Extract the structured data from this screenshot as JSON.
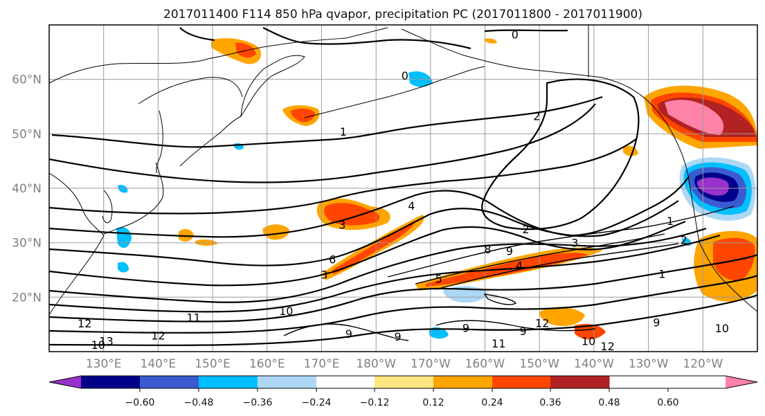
{
  "title": "2017011400 F114 850 hPa qvapor, precipitation PC (2017011800 - 2017011900)",
  "map": {
    "lat_range": [
      10,
      70
    ],
    "lon_range_east": [
      120,
      250
    ],
    "lat_ticks": [
      {
        "value": 60,
        "label": "60°N"
      },
      {
        "value": 50,
        "label": "50°N"
      },
      {
        "value": 40,
        "label": "40°N"
      },
      {
        "value": 30,
        "label": "30°N"
      },
      {
        "value": 20,
        "label": "20°N"
      }
    ],
    "lon_ticks": [
      {
        "value": 130,
        "label": "130°E"
      },
      {
        "value": 140,
        "label": "140°E"
      },
      {
        "value": 150,
        "label": "150°E"
      },
      {
        "value": 160,
        "label": "160°E"
      },
      {
        "value": 170,
        "label": "170°E"
      },
      {
        "value": 180,
        "label": "180°W"
      },
      {
        "value": 190,
        "label": "170°W"
      },
      {
        "value": 200,
        "label": "160°W"
      },
      {
        "value": 210,
        "label": "150°W"
      },
      {
        "value": 220,
        "label": "140°W"
      },
      {
        "value": 230,
        "label": "130°W"
      },
      {
        "value": 240,
        "label": "120°W"
      }
    ],
    "contour_labels": [
      {
        "text": "0",
        "lon": 205.5,
        "lat": 68.3
      },
      {
        "text": "0",
        "lon": 185.3,
        "lat": 60.7
      },
      {
        "text": "1",
        "lon": 174.0,
        "lat": 50.4
      },
      {
        "text": "2",
        "lon": 209.5,
        "lat": 53.3
      },
      {
        "text": "4",
        "lon": 186.5,
        "lat": 36.8
      },
      {
        "text": "3",
        "lon": 173.8,
        "lat": 33.3
      },
      {
        "text": "2",
        "lon": 207.5,
        "lat": 32.5
      },
      {
        "text": "3",
        "lon": 216.5,
        "lat": 30.0
      },
      {
        "text": "8",
        "lon": 200.5,
        "lat": 28.8
      },
      {
        "text": "9",
        "lon": 204.5,
        "lat": 28.5
      },
      {
        "text": "6",
        "lon": 172.0,
        "lat": 27.0
      },
      {
        "text": "3",
        "lon": 170.5,
        "lat": 24.2
      },
      {
        "text": "5",
        "lon": 191.5,
        "lat": 23.4
      },
      {
        "text": "4",
        "lon": 206.3,
        "lat": 25.8
      },
      {
        "text": "1",
        "lon": 234.0,
        "lat": 34.0
      },
      {
        "text": "1",
        "lon": 232.5,
        "lat": 24.3
      },
      {
        "text": "2",
        "lon": 236.5,
        "lat": 30.5
      },
      {
        "text": "12",
        "lon": 126.5,
        "lat": 15.2
      },
      {
        "text": "11",
        "lon": 146.5,
        "lat": 16.3
      },
      {
        "text": "10",
        "lon": 163.5,
        "lat": 17.5
      },
      {
        "text": "13",
        "lon": 130.5,
        "lat": 12.0
      },
      {
        "text": "12",
        "lon": 140.0,
        "lat": 13.0
      },
      {
        "text": "10",
        "lon": 129.0,
        "lat": 11.3
      },
      {
        "text": "9",
        "lon": 175.0,
        "lat": 13.3
      },
      {
        "text": "9",
        "lon": 184.0,
        "lat": 12.8
      },
      {
        "text": "9",
        "lon": 196.5,
        "lat": 14.4
      },
      {
        "text": "9",
        "lon": 207.0,
        "lat": 13.8
      },
      {
        "text": "11",
        "lon": 202.5,
        "lat": 11.5
      },
      {
        "text": "10",
        "lon": 219.0,
        "lat": 12.0
      },
      {
        "text": "12",
        "lon": 222.5,
        "lat": 11.0
      },
      {
        "text": "9",
        "lon": 231.5,
        "lat": 15.4
      },
      {
        "text": "10",
        "lon": 243.5,
        "lat": 14.3
      },
      {
        "text": "12",
        "lon": 210.5,
        "lat": 15.3
      }
    ]
  },
  "colorbar": {
    "colors": [
      "#9932cc",
      "#00008b",
      "#3a5bd0",
      "#00bfff",
      "#add8f5",
      "#ffffff",
      "#ffe680",
      "#ffa500",
      "#ff4500",
      "#b22222",
      "#ff82a8"
    ],
    "tick_labels": [
      "−0.60",
      "−0.48",
      "−0.36",
      "−0.24",
      "−0.12",
      "0.12",
      "0.24",
      "0.36",
      "0.48",
      "0.60"
    ]
  }
}
